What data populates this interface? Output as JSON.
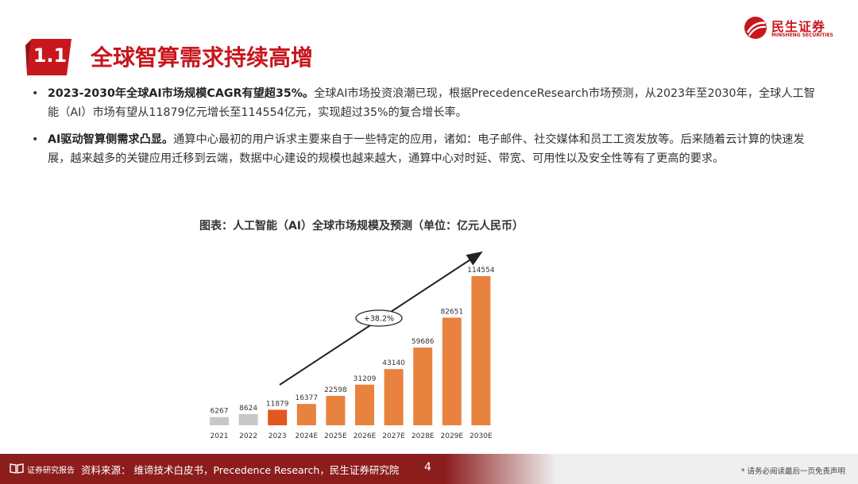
{
  "brand": {
    "name_cn": "民生证券",
    "name_en": "MINSHENG SECURITIES",
    "color": "#c8161d"
  },
  "section": {
    "number": "1.1",
    "title": "全球智算需求持续高增"
  },
  "bullets": [
    {
      "bold": "2023-2030年全球AI市场规模CAGR有望超35%。",
      "text": "全球AI市场投资浪潮已现，根据PrecedenceResearch市场预测，从2023年至2030年，全球人工智能（AI）市场有望从11879亿元增长至114554亿元，实现超过35%的复合增长率。"
    },
    {
      "bold": "AI驱动智算侧需求凸显。",
      "text": "通算中心最初的用户诉求主要来自于一些特定的应用，诸如：电子邮件、社交媒体和员工工资发放等。后来随着云计算的快速发展，越来越多的关键应用迁移到云端，数据中心建设的规模也越来越大，通算中心对时延、带宽、可用性以及安全性等有了更高的要求。"
    }
  ],
  "chart_data": {
    "type": "bar",
    "title": "图表：人工智能（AI）全球市场规模及预测（单位：亿元人民币）",
    "categories": [
      "2021",
      "2022",
      "2023",
      "2024E",
      "2025E",
      "2026E",
      "2027E",
      "2028E",
      "2029E",
      "2030E"
    ],
    "values": [
      6267,
      8624,
      11879,
      16377,
      22598,
      31209,
      43140,
      59686,
      82651,
      114554
    ],
    "bar_colors": [
      "#c8c8c8",
      "#c8c8c8",
      "#e2561f",
      "#e8823f",
      "#e8823f",
      "#e8823f",
      "#e8823f",
      "#e8823f",
      "#e8823f",
      "#e8823f"
    ],
    "annotation": "+38.2%",
    "ylim": [
      0,
      114554
    ],
    "grid": false,
    "legend": "none"
  },
  "footer": {
    "brand": "证券研究报告",
    "source": "资料来源：  维谛技术白皮书，Precedence Research，民生证券研究院",
    "page": "4",
    "disclaimer": "* 请务必阅读最后一页免责声明"
  }
}
